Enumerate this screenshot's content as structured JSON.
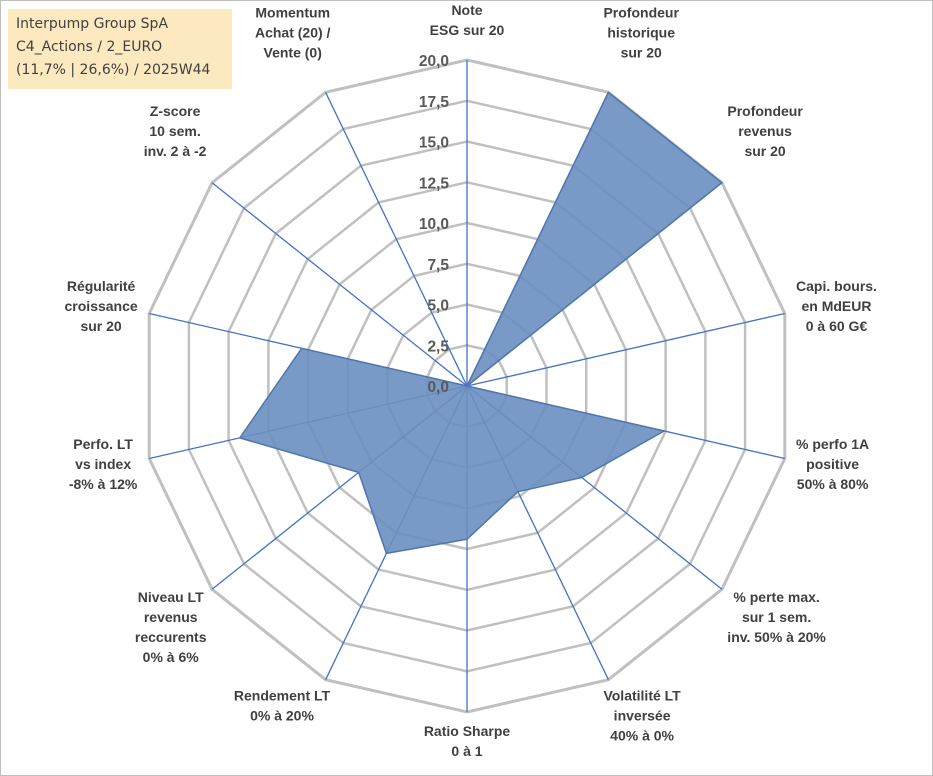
{
  "info_box": {
    "line1": "Interpump Group SpA",
    "line2": "C4_Actions / 2_EURO",
    "line3": "(11,7% | 26,6%) / 2025W44"
  },
  "colors": {
    "fill": "#6a8fc0",
    "stroke": "#4f76ad",
    "spoke": "#4472c4",
    "grid": "#c0c0c0",
    "info_bg": "#fde9c0"
  },
  "chart_data": {
    "type": "radar",
    "r_range": [
      0,
      20
    ],
    "r_ticks": [
      "0,0",
      "2,5",
      "5,0",
      "7,5",
      "10,0",
      "12,5",
      "15,0",
      "17,5",
      "20,0"
    ],
    "r_tick_values": [
      0,
      2.5,
      5,
      7.5,
      10,
      12.5,
      15,
      17.5,
      20
    ],
    "axes": [
      {
        "label": [
          "Note",
          "ESG sur 20"
        ],
        "value": 0
      },
      {
        "label": [
          "Profondeur",
          "historique",
          "sur 20"
        ],
        "value": 20
      },
      {
        "label": [
          "Profondeur",
          "revenus",
          "sur 20"
        ],
        "value": 20
      },
      {
        "label": [
          "Capi. bours.",
          "en MdEUR",
          "0 à 60 G€"
        ],
        "value": 0
      },
      {
        "label": [
          "% perfo 1A",
          "positive",
          "50% à 80%"
        ],
        "value": 12.4
      },
      {
        "label": [
          "% perte max.",
          "sur 1 sem.",
          "inv. 50% à 20%"
        ],
        "value": 9
      },
      {
        "label": [
          "Volatilité LT",
          "inversée",
          "40% à 0%"
        ],
        "value": 7.2
      },
      {
        "label": [
          "Ratio Sharpe",
          "0 à 1"
        ],
        "value": 9.4
      },
      {
        "label": [
          "Rendement LT",
          "0% à 20%"
        ],
        "value": 11.4
      },
      {
        "label": [
          "Niveau LT",
          "revenus",
          "reccurents",
          "0% à 6%"
        ],
        "value": 8.5
      },
      {
        "label": [
          "Perfo. LT",
          "vs index",
          "-8% à 12%"
        ],
        "value": 14.3
      },
      {
        "label": [
          "Régularité",
          "croissance",
          "sur 20"
        ],
        "value": 10.4
      },
      {
        "label": [
          "Z-score",
          "10 sem.",
          "inv. 2 à -2"
        ],
        "value": 0
      },
      {
        "label": [
          "Momentum",
          "Achat (20) /",
          "Vente (0)"
        ],
        "value": 0
      }
    ]
  }
}
